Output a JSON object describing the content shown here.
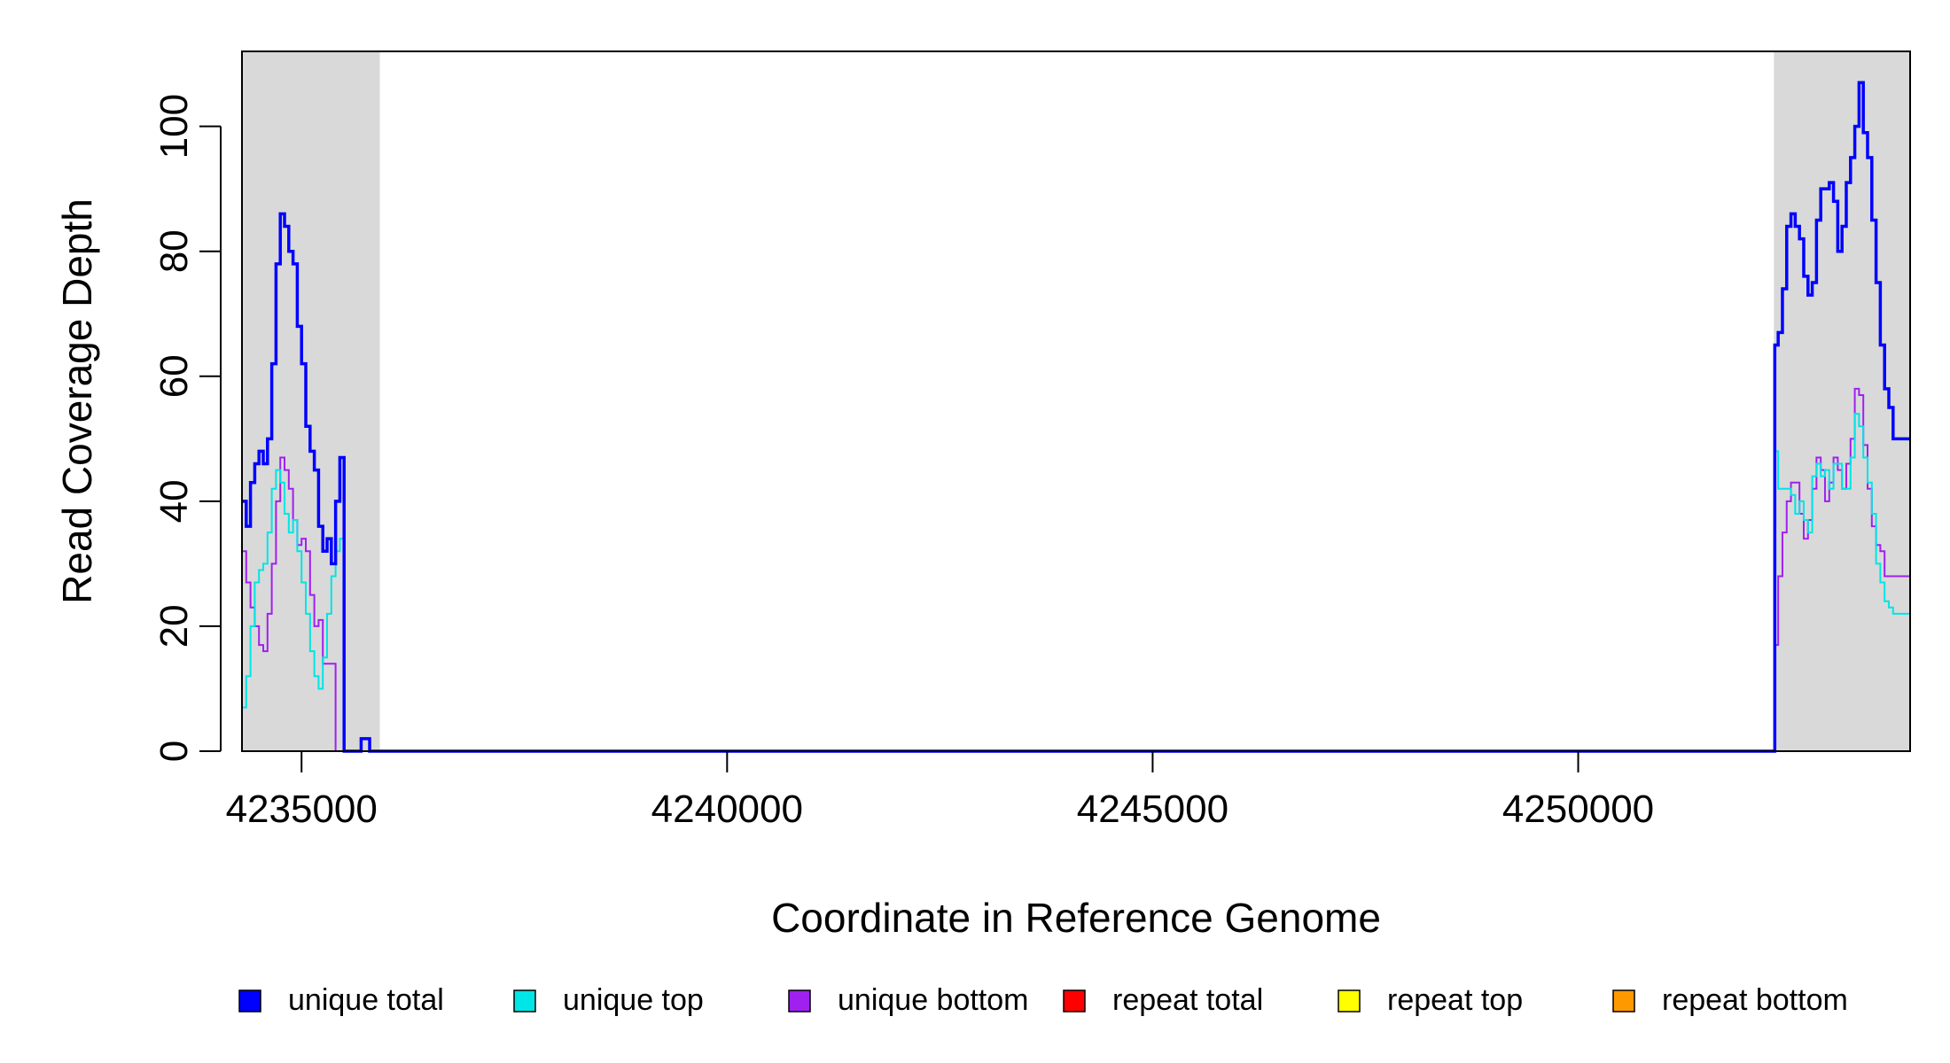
{
  "chart_data": {
    "type": "line",
    "title": "",
    "xlabel": "Coordinate in Reference Genome",
    "ylabel": "Read Coverage Depth",
    "xlim": [
      4234300,
      4253900
    ],
    "ylim": [
      0,
      112
    ],
    "x_ticks": [
      4235000,
      4240000,
      4245000,
      4250000
    ],
    "x_tick_labels": [
      "4235000",
      "4240000",
      "4245000",
      "4250000"
    ],
    "y_ticks": [
      0,
      20,
      40,
      60,
      80,
      100
    ],
    "y_tick_labels": [
      "0",
      "20",
      "40",
      "60",
      "80",
      "100"
    ],
    "grid": false,
    "legend_placement": "bottom",
    "shaded_regions": [
      [
        4234300,
        4235920
      ],
      [
        4252300,
        4253900
      ]
    ],
    "colors": {
      "shade": "#d9d9d9",
      "unique_total": "#0000ff",
      "unique_top": "#00e5e5",
      "unique_bottom": "#a020f0",
      "repeat_total": "#ff0000",
      "repeat_top": "#ffff00",
      "repeat_bottom": "#ff9900"
    },
    "series": [
      {
        "name": "unique total",
        "color": "#0000ff",
        "x": [
          4234300,
          4234350,
          4234400,
          4234450,
          4234500,
          4234550,
          4234600,
          4234650,
          4234700,
          4234750,
          4234800,
          4234850,
          4234900,
          4234950,
          4235000,
          4235050,
          4235100,
          4235150,
          4235200,
          4235250,
          4235300,
          4235350,
          4235400,
          4235450,
          4235500,
          4235550,
          4235600,
          4235650,
          4235700,
          4235750,
          4235800,
          4235850,
          4235900,
          4235930,
          4235950,
          4247200,
          4247210,
          4247450,
          4247460,
          4252300,
          4252310,
          4252350,
          4252400,
          4252450,
          4252500,
          4252550,
          4252600,
          4252650,
          4252700,
          4252750,
          4252800,
          4252850,
          4252900,
          4252950,
          4253000,
          4253050,
          4253100,
          4253150,
          4253200,
          4253250,
          4253300,
          4253350,
          4253400,
          4253450,
          4253500,
          4253550,
          4253600,
          4253650,
          4253700,
          4253750,
          4253800,
          4253850,
          4253900
        ],
        "y": [
          40,
          36,
          43,
          46,
          48,
          46,
          50,
          62,
          78,
          86,
          84,
          80,
          78,
          68,
          62,
          52,
          48,
          45,
          36,
          32,
          34,
          30,
          40,
          47,
          0,
          0,
          0,
          0,
          2,
          2,
          0,
          0,
          0,
          0,
          0,
          0,
          0,
          0,
          0,
          0,
          65,
          67,
          74,
          84,
          86,
          84,
          82,
          76,
          73,
          75,
          85,
          90,
          90,
          91,
          88,
          80,
          84,
          91,
          95,
          100,
          107,
          99,
          95,
          85,
          75,
          65,
          58,
          55,
          50,
          50,
          50,
          50,
          50
        ],
        "x_note": "",
        "draw_mode": "step"
      },
      {
        "name": "unique top",
        "color": "#00e5e5",
        "x": [
          4234300,
          4234350,
          4234400,
          4234450,
          4234500,
          4234550,
          4234600,
          4234650,
          4234700,
          4234750,
          4234800,
          4234850,
          4234900,
          4234950,
          4235000,
          4235050,
          4235100,
          4235150,
          4235200,
          4235250,
          4235300,
          4235350,
          4235400,
          4235450,
          4235500,
          4235550,
          4235600,
          4235650,
          4235700,
          4235750,
          4235800,
          4235850,
          4235900,
          4235930,
          4235950,
          4252300,
          4252310,
          4252350,
          4252400,
          4252450,
          4252500,
          4252550,
          4252600,
          4252650,
          4252700,
          4252750,
          4252800,
          4252850,
          4252900,
          4252950,
          4253000,
          4253050,
          4253100,
          4253150,
          4253200,
          4253250,
          4253300,
          4253350,
          4253400,
          4253450,
          4253500,
          4253550,
          4253600,
          4253650,
          4253700,
          4253750,
          4253800,
          4253850,
          4253900
        ],
        "y": [
          7,
          12,
          20,
          27,
          29,
          30,
          35,
          42,
          45,
          43,
          38,
          35,
          37,
          32,
          27,
          22,
          16,
          12,
          10,
          15,
          22,
          28,
          32,
          34,
          0,
          0,
          0,
          0,
          0,
          0,
          0,
          0,
          0,
          0,
          0,
          0,
          48,
          42,
          42,
          42,
          41,
          38,
          40,
          37,
          35,
          44,
          46,
          44,
          45,
          42,
          46,
          46,
          42,
          42,
          47,
          54,
          52,
          47,
          43,
          38,
          30,
          27,
          24,
          23,
          22,
          22,
          22,
          22,
          22
        ],
        "x_note": "",
        "draw_mode": "step"
      },
      {
        "name": "unique bottom",
        "color": "#a020f0",
        "x": [
          4234300,
          4234350,
          4234400,
          4234450,
          4234500,
          4234550,
          4234600,
          4234650,
          4234700,
          4234750,
          4234800,
          4234850,
          4234900,
          4234950,
          4235000,
          4235050,
          4235100,
          4235150,
          4235200,
          4235250,
          4235300,
          4235350,
          4235400,
          4235450,
          4235500,
          4235550,
          4235600,
          4235650,
          4235700,
          4235750,
          4235800,
          4235850,
          4235900,
          4235930,
          4235950,
          4252300,
          4252310,
          4252350,
          4252400,
          4252450,
          4252500,
          4252550,
          4252600,
          4252650,
          4252700,
          4252750,
          4252800,
          4252850,
          4252900,
          4252950,
          4253000,
          4253050,
          4253100,
          4253150,
          4253200,
          4253250,
          4253300,
          4253350,
          4253400,
          4253450,
          4253500,
          4253550,
          4253600,
          4253650,
          4253700,
          4253750,
          4253800,
          4253850,
          4253900
        ],
        "y": [
          32,
          27,
          23,
          20,
          17,
          16,
          22,
          30,
          40,
          47,
          45,
          42,
          37,
          33,
          34,
          32,
          25,
          20,
          21,
          14,
          14,
          14,
          0,
          0,
          0,
          0,
          0,
          0,
          0,
          0,
          0,
          0,
          0,
          0,
          0,
          0,
          17,
          28,
          35,
          40,
          43,
          43,
          38,
          34,
          37,
          42,
          47,
          45,
          40,
          43,
          47,
          45,
          42,
          46,
          50,
          58,
          57,
          49,
          42,
          36,
          33,
          32,
          28,
          28,
          28,
          28,
          28,
          28,
          28
        ],
        "x_note": "",
        "draw_mode": "step"
      },
      {
        "name": "repeat total",
        "color": "#ff0000",
        "x": [
          4234300,
          4253900
        ],
        "y": [
          0,
          0
        ],
        "x_note": "",
        "draw_mode": "step"
      },
      {
        "name": "repeat top",
        "color": "#ffff00",
        "x": [
          4234300,
          4253900
        ],
        "y": [
          0,
          0
        ],
        "x_note": "",
        "draw_mode": "step"
      },
      {
        "name": "repeat bottom",
        "color": "#ff9900",
        "x": [
          4234300,
          4253900
        ],
        "y": [
          0,
          0
        ],
        "x_note": "",
        "draw_mode": "step"
      }
    ]
  },
  "legend": [
    {
      "label": "unique total",
      "color": "#0000ff"
    },
    {
      "label": "unique top",
      "color": "#00e5e5"
    },
    {
      "label": "unique bottom",
      "color": "#a020f0"
    },
    {
      "label": "repeat total",
      "color": "#ff0000"
    },
    {
      "label": "repeat top",
      "color": "#ffff00"
    },
    {
      "label": "repeat bottom",
      "color": "#ff9900"
    }
  ]
}
